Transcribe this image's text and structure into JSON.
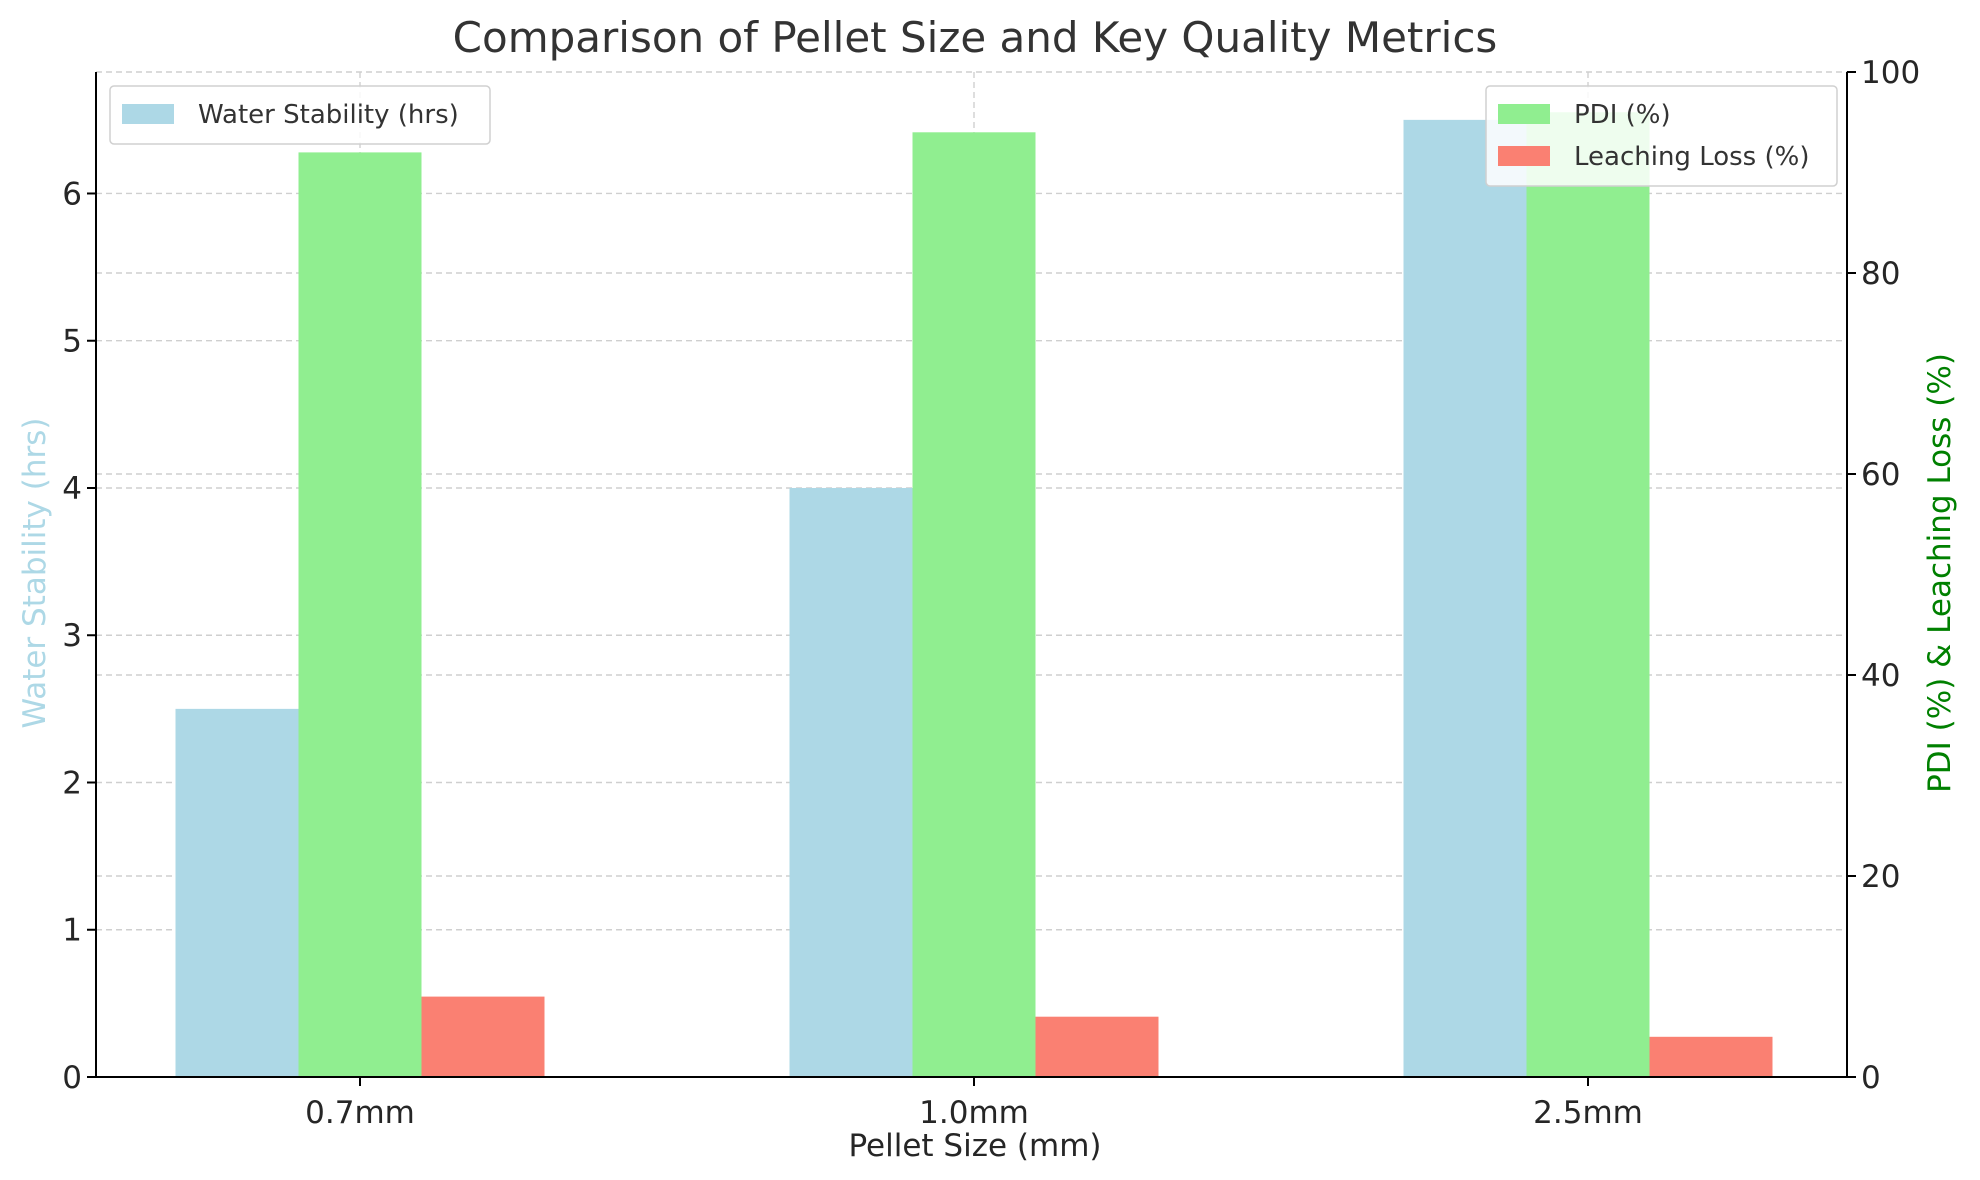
{
  "chart_data": {
    "type": "bar",
    "title": "Comparison of Pellet Size and Key Quality Metrics",
    "xlabel": "Pellet Size (mm)",
    "ylabel_left": "Water Stability (hrs)",
    "ylabel_right": "PDI (%) & Leaching Loss (%)",
    "categories": [
      "0.7mm",
      "1.0mm",
      "2.5mm"
    ],
    "ylim_left": [
      0,
      6.825
    ],
    "ylim_right": [
      0,
      100
    ],
    "yticks_left": [
      0,
      1,
      2,
      3,
      4,
      5,
      6
    ],
    "yticks_right": [
      0,
      20,
      40,
      60,
      80,
      100
    ],
    "grid": true,
    "series": [
      {
        "name": "Water Stability (hrs)",
        "axis": "left",
        "color": "#add8e6",
        "values": [
          2.5,
          4.0,
          6.5
        ]
      },
      {
        "name": "PDI (%)",
        "axis": "right",
        "color": "#90ee90",
        "values": [
          92,
          94,
          96
        ]
      },
      {
        "name": "Leaching Loss (%)",
        "axis": "right",
        "color": "#fa8072",
        "values": [
          8,
          6,
          4
        ]
      }
    ],
    "legend_left": {
      "placement": "top-left",
      "entries": [
        "Water Stability (hrs)"
      ]
    },
    "legend_right": {
      "placement": "top-right",
      "entries": [
        "PDI (%)",
        "Leaching Loss (%)"
      ]
    },
    "colors": {
      "left_axis_label": "#add8e6",
      "right_axis_label": "#008000"
    }
  }
}
